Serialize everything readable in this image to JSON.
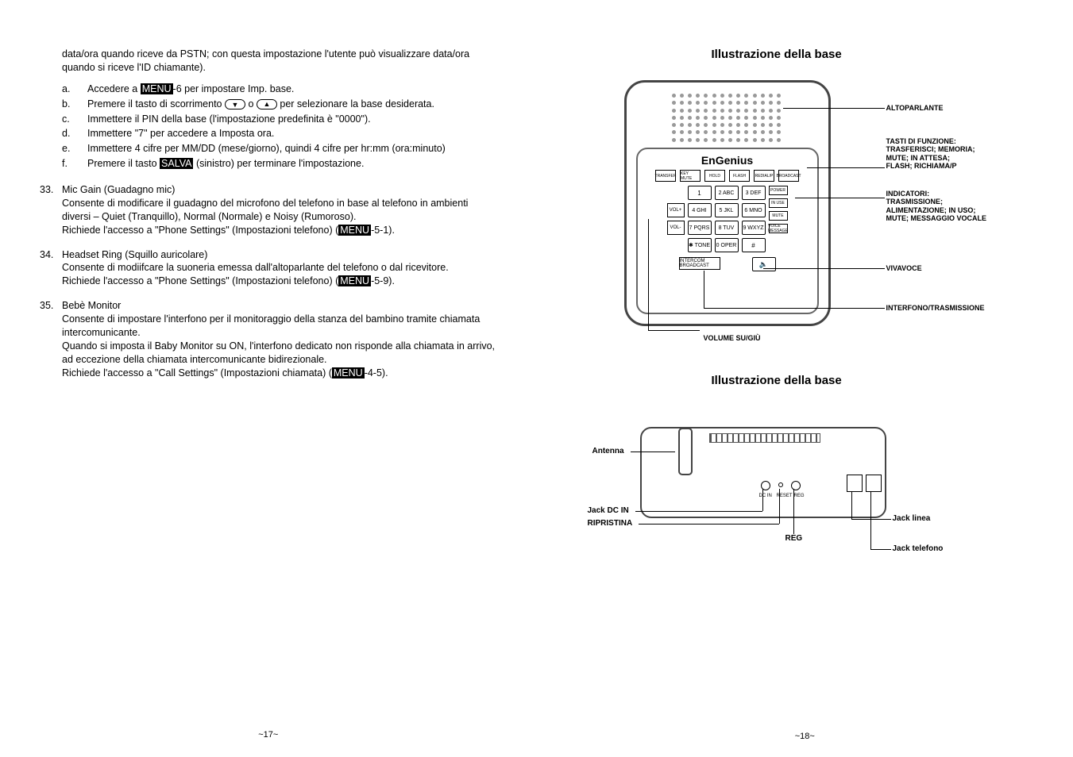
{
  "leftPage": {
    "intro": "data/ora quando riceve da PSTN; con questa impostazione l'utente può visualizzare data/ora quando si riceve l'ID chiamante).",
    "steps": {
      "a": {
        "letter": "a.",
        "pre": "Accedere a ",
        "inv": "MENU",
        "post": "-6 per impostare Imp. base."
      },
      "b": {
        "letter": "b.",
        "pre": "Premere il tasto di scorrimento ",
        "mid": " o ",
        "post": " per selezionare la base desiderata."
      },
      "c": {
        "letter": "c.",
        "text": "Immettere il PIN della base (l'impostazione predefinita è \"0000\")."
      },
      "d": {
        "letter": "d.",
        "text": "Immettere \"7\" per accedere a Imposta ora."
      },
      "e": {
        "letter": "e.",
        "text": "Immettere 4 cifre per MM/DD (mese/giorno), quindi 4 cifre per hr:mm (ora:minuto)"
      },
      "f": {
        "letter": "f.",
        "pre": "Premere il tasto ",
        "inv": "SALVA",
        "post": " (sinistro) per terminare l'impostazione."
      }
    },
    "item33": {
      "num": "33.",
      "title": "Mic Gain (Guadagno mic)",
      "p1": "Consente di modificare il guadagno del microfono del telefono in base al telefono in ambienti diversi – Quiet (Tranquillo), Normal (Normale) e Noisy (Rumoroso).",
      "p2pre": "Richiede l'accesso a \"Phone Settings\" (Impostazioni telefono) (",
      "p2inv": "MENU",
      "p2post": "-5-1)."
    },
    "item34": {
      "num": "34.",
      "title": "Headset Ring (Squillo auricolare)",
      "p1": "Consente di modiifcare la suoneria emessa dall'altoparlante del telefono o dal ricevitore.",
      "p2pre": "Richiede l'accesso a \"Phone Settings\" (Impostazioni telefono) (",
      "p2inv": "MENU",
      "p2post": "-5-9)."
    },
    "item35": {
      "num": "35.",
      "title": "Bebè Monitor",
      "p1": "Consente di impostare l'interfono per il monitoraggio della stanza del bambino tramite chiamata intercomunicante.",
      "p2": "Quando si imposta il Baby Monitor su ON, l'interfono dedicato non risponde alla chiamata in arrivo, ad eccezione della chiamata intercomunicante bidirezionale.",
      "p3pre": "Richiede l'accesso a \"Call Settings\" (Impostazioni chiamata) (",
      "p3inv": "MENU",
      "p3post": "-4-5)."
    },
    "pageNum": "~17~"
  },
  "rightPage": {
    "title1": "Illustrazione della base",
    "title2": "Illustrazione della base",
    "brand": "EnGenius",
    "fnKeys": [
      "TRANSFER",
      "KEY MUTE",
      "HOLD",
      "FLASH",
      "REDIAL/P",
      "BROADCAST"
    ],
    "leds": [
      "POWER",
      "IN USE",
      "MUTE",
      "VOICE MESSAGE"
    ],
    "sideL": [
      "VOL+",
      "VOL-"
    ],
    "keypad": [
      [
        "1",
        "2 ABC",
        "3 DEF"
      ],
      [
        "4 GHI",
        "5 JKL",
        "6 MNO"
      ],
      [
        "7 PQRS",
        "8 TUV",
        "9 WXYZ"
      ],
      [
        "✱ TONE",
        "0 OPER",
        "#"
      ]
    ],
    "bottomBtns": {
      "intercom": "INTERCOM BROADCAST",
      "speaker": "🔈"
    },
    "callouts": {
      "speaker": "ALTOPARLANTE",
      "fnkeys": "TASTI DI FUNZIONE:\nTRASFERISCI; MEMORIA;\nMUTE; IN ATTESA;\nFLASH; RICHIAMA/P",
      "leds": "INDICATORI:\nTRASMISSIONE;\nALIMENTAZIONE; IN USO;\nMUTE;  MESSAGGIO VOCALE",
      "handsfree": "VIVAVOCE",
      "intercom": "INTERFONO/TRASMISSIONE",
      "volume": "VOLUME SU/GIÙ"
    },
    "back": {
      "antenna": "Antenna",
      "dcin": "Jack DC IN",
      "reset": "RIPRISTINA",
      "reg": "REG",
      "line": "Jack linea",
      "phone": "Jack telefono"
    },
    "pageNum": "~18~"
  }
}
